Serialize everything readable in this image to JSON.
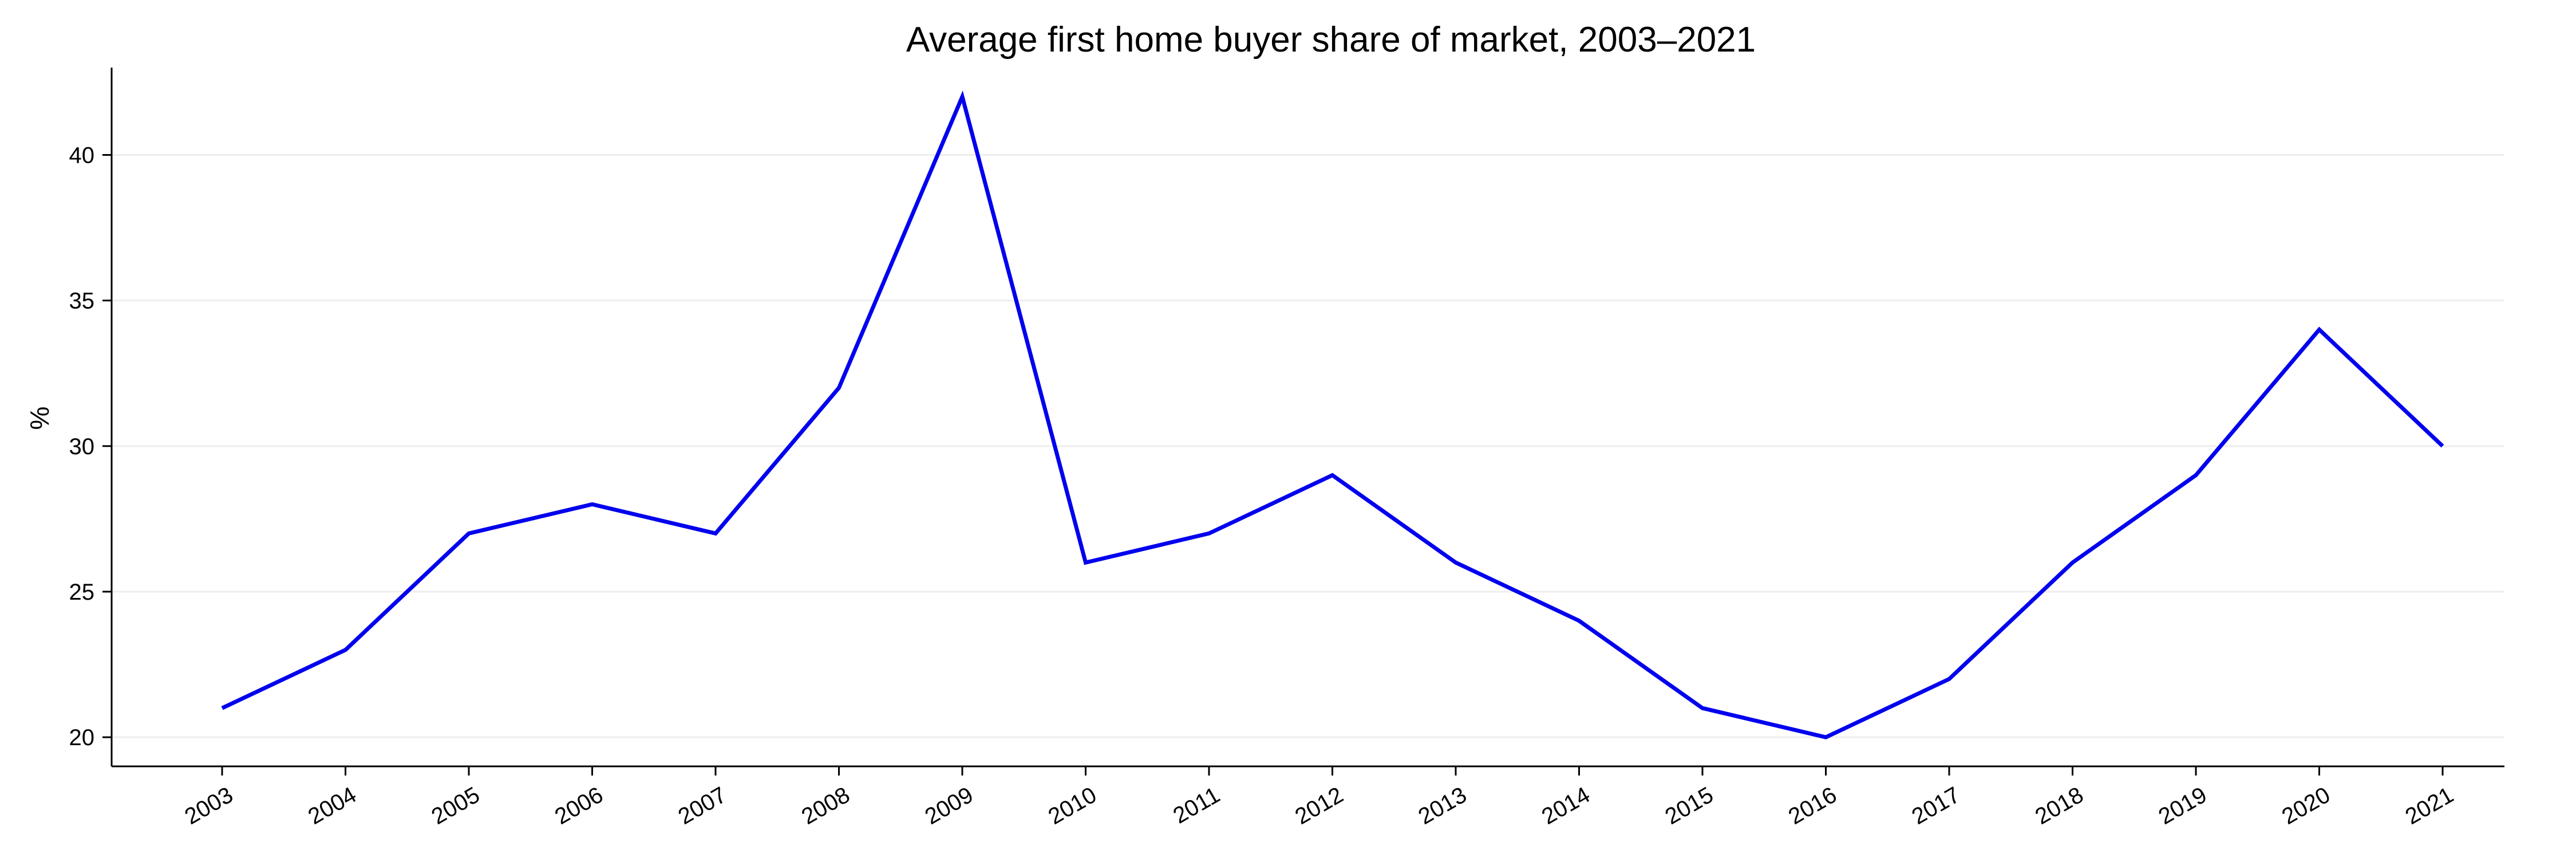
{
  "chart_data": {
    "type": "line",
    "title": "Average first home buyer share of market, 2003–2021",
    "xlabel": "",
    "ylabel": "%",
    "x": [
      "2003",
      "2004",
      "2005",
      "2006",
      "2007",
      "2008",
      "2009",
      "2010",
      "2011",
      "2012",
      "2013",
      "2014",
      "2015",
      "2016",
      "2017",
      "2018",
      "2019",
      "2020",
      "2021"
    ],
    "series": [
      {
        "values": [
          21,
          23,
          27,
          28,
          27,
          32,
          42,
          26,
          27,
          29,
          26,
          24,
          21,
          20,
          22,
          26,
          29,
          34,
          30
        ]
      }
    ],
    "yticks": [
      20,
      25,
      30,
      35,
      40
    ],
    "ylim": [
      19,
      43
    ],
    "grid": "horizontal",
    "line_color": "#0000ee",
    "axis_color": "#000000",
    "grid_color": "#eeeeee"
  }
}
